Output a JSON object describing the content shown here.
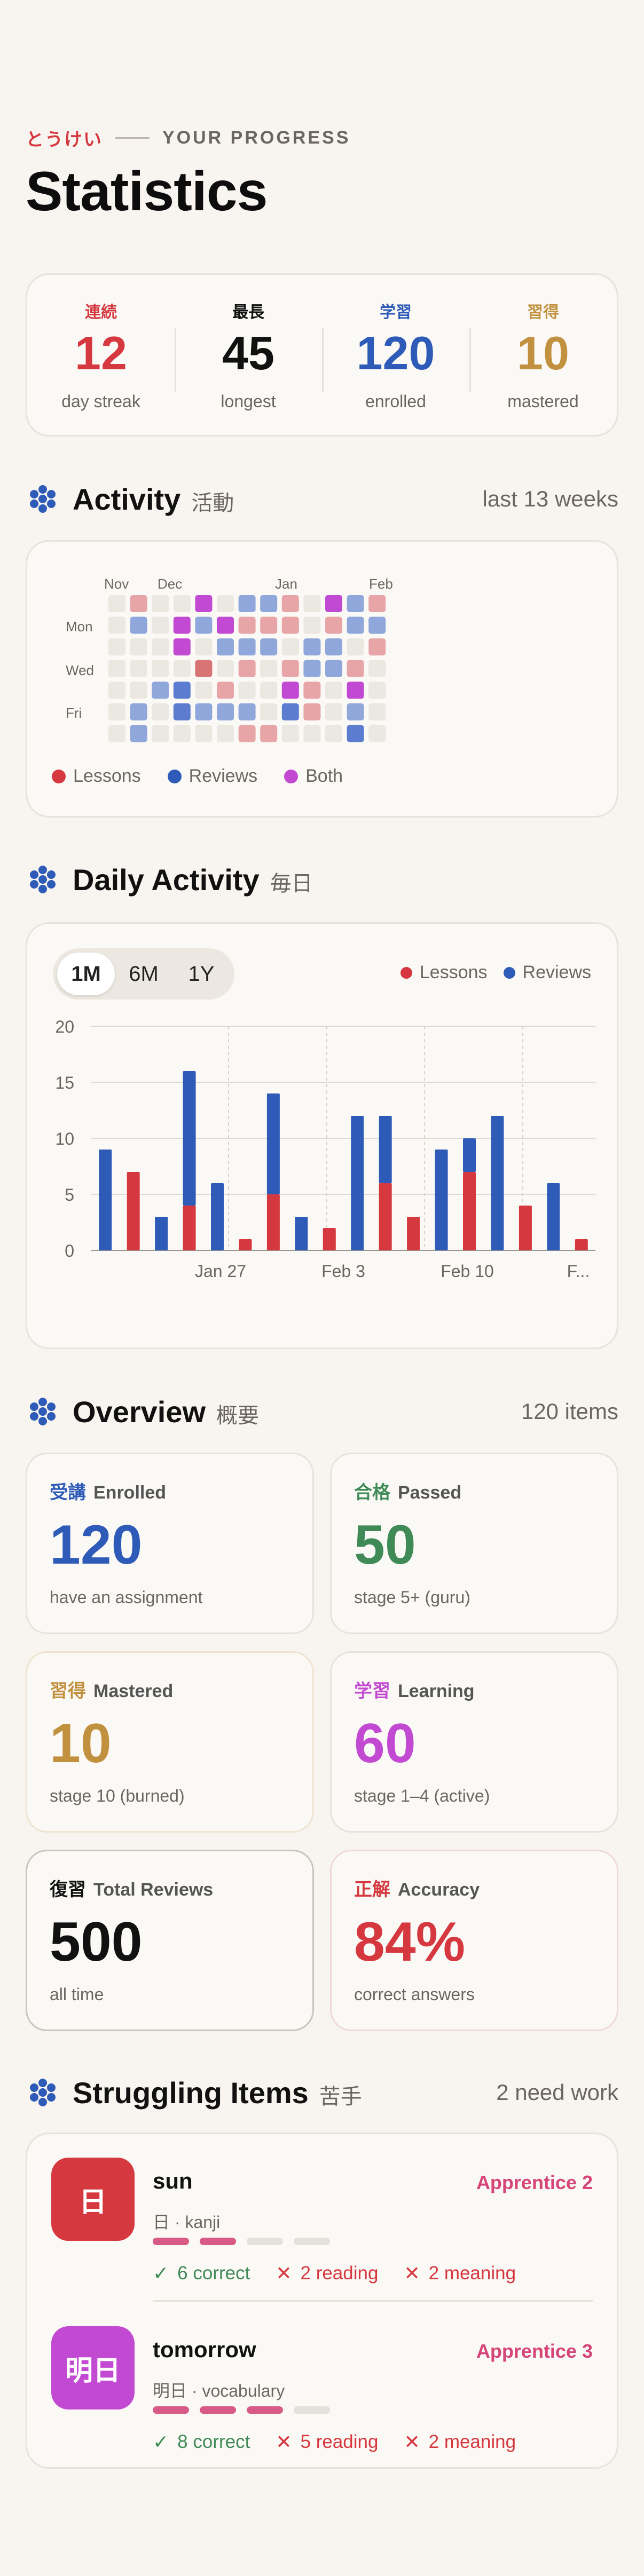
{
  "header": {
    "eyebrow_jp": "とうけい",
    "eyebrow_en": "YOUR PROGRESS",
    "title": "Statistics"
  },
  "summary": [
    {
      "jp": "連続",
      "value": "12",
      "label": "day streak",
      "color": "#d5383f"
    },
    {
      "jp": "最長",
      "value": "45",
      "label": "longest",
      "color": "#111111"
    },
    {
      "jp": "学習",
      "value": "120",
      "label": "enrolled",
      "color": "#2f5bb8"
    },
    {
      "jp": "習得",
      "value": "10",
      "label": "mastered",
      "color": "#c2913f"
    }
  ],
  "activity": {
    "title": "Activity",
    "jp": "活動",
    "range": "last 13 weeks",
    "months": [
      "Nov",
      "Dec",
      "Jan",
      "Feb"
    ],
    "days": [
      "Mon",
      "Wed",
      "Fri"
    ],
    "legend": {
      "lessons": "Lessons",
      "reviews": "Reviews",
      "both": "Both"
    },
    "colors": {
      "empty": "#ebe7e1",
      "lessons": "#e8a5a8",
      "reviews": "#90a7db",
      "reviews_strong": "#5b7ccf",
      "lessons_strong": "#d97474",
      "both": "#c24ad2"
    },
    "cells": [
      "e",
      "e",
      "e",
      "e",
      "e",
      "e",
      "e",
      "l",
      "r",
      "e",
      "e",
      "e",
      "r",
      "r",
      "e",
      "e",
      "e",
      "e",
      "r",
      "e",
      "e",
      "e",
      "b",
      "b",
      "e",
      "R",
      "R",
      "e",
      "b",
      "r",
      "e",
      "L",
      "e",
      "r",
      "e",
      "e",
      "b",
      "r",
      "e",
      "l",
      "r",
      "e",
      "r",
      "l",
      "r",
      "l",
      "e",
      "r",
      "l",
      "r",
      "l",
      "r",
      "e",
      "e",
      "e",
      "l",
      "l",
      "l",
      "e",
      "l",
      "b",
      "R",
      "e",
      "e",
      "e",
      "r",
      "r",
      "l",
      "l",
      "e",
      "b",
      "l",
      "r",
      "r",
      "e",
      "e",
      "e",
      "r",
      "r",
      "e",
      "l",
      "b",
      "r",
      "R",
      "l",
      "r",
      "l",
      "e",
      "e",
      "e",
      "e"
    ]
  },
  "daily": {
    "title": "Daily Activity",
    "jp": "毎日",
    "ranges": [
      "1M",
      "6M",
      "1Y"
    ],
    "selected": "1M",
    "legend": {
      "lessons": "Lessons",
      "reviews": "Reviews"
    },
    "colors": {
      "lessons": "#d5383f",
      "reviews": "#2f5bb8"
    }
  },
  "chart_data": {
    "type": "bar",
    "stacked": true,
    "ylim": [
      0,
      20
    ],
    "yticks": [
      0,
      5,
      10,
      15,
      20
    ],
    "x_labels": [
      "Jan 27",
      "Feb 3",
      "Feb 10",
      "F..."
    ],
    "grid": true,
    "bars": [
      {
        "lessons": 0,
        "reviews": 9
      },
      {
        "lessons": 7,
        "reviews": 0
      },
      {
        "lessons": 0,
        "reviews": 3
      },
      {
        "lessons": 4,
        "reviews": 12
      },
      {
        "lessons": 0,
        "reviews": 6
      },
      {
        "lessons": 1,
        "reviews": 0
      },
      {
        "lessons": 5,
        "reviews": 9
      },
      {
        "lessons": 0,
        "reviews": 3
      },
      {
        "lessons": 2,
        "reviews": 0
      },
      {
        "lessons": 0,
        "reviews": 12
      },
      {
        "lessons": 6,
        "reviews": 6
      },
      {
        "lessons": 3,
        "reviews": 0
      },
      {
        "lessons": 0,
        "reviews": 9
      },
      {
        "lessons": 7,
        "reviews": 3
      },
      {
        "lessons": 0,
        "reviews": 12
      },
      {
        "lessons": 4,
        "reviews": 0
      },
      {
        "lessons": 0,
        "reviews": 6
      },
      {
        "lessons": 1,
        "reviews": 0
      }
    ]
  },
  "overview": {
    "title": "Overview",
    "jp": "概要",
    "count": "120 items",
    "tiles": [
      {
        "jp": "受講",
        "label": "Enrolled",
        "value": "120",
        "sub": "have an assignment",
        "color": "#2f5bb8",
        "border": "#e6e2dc"
      },
      {
        "jp": "合格",
        "label": "Passed",
        "value": "50",
        "sub": "stage 5+ (guru)",
        "color": "#3f8a57",
        "border": "#e6e2dc"
      },
      {
        "jp": "習得",
        "label": "Mastered",
        "value": "10",
        "sub": "stage 10 (burned)",
        "color": "#c2913f",
        "border": "#efe4d2"
      },
      {
        "jp": "学習",
        "label": "Learning",
        "value": "60",
        "sub": "stage 1–4 (active)",
        "color": "#c24ad2",
        "border": "#e6e2dc"
      },
      {
        "jp": "復習",
        "label": "Total Reviews",
        "value": "500",
        "sub": "all time",
        "color": "#111111",
        "border": "#c8c4be"
      },
      {
        "jp": "正解",
        "label": "Accuracy",
        "value": "84%",
        "sub": "correct answers",
        "color": "#d5383f",
        "border": "#efd9d9"
      }
    ]
  },
  "struggling": {
    "title": "Struggling Items",
    "jp": "苦手",
    "count": "2 need work",
    "items": [
      {
        "glyph": "日",
        "name": "sun",
        "stage": "Apprentice 2",
        "meta": "日 · kanji",
        "level": 2,
        "correct": "6 correct",
        "reading": "2 reading",
        "meaning": "2 meaning",
        "color": "#d5383f"
      },
      {
        "glyph": "明日",
        "name": "tomorrow",
        "stage": "Apprentice 3",
        "meta": "明日 · vocabulary",
        "level": 3,
        "correct": "8 correct",
        "reading": "5 reading",
        "meaning": "2 meaning",
        "color": "#c24ad2"
      }
    ]
  }
}
